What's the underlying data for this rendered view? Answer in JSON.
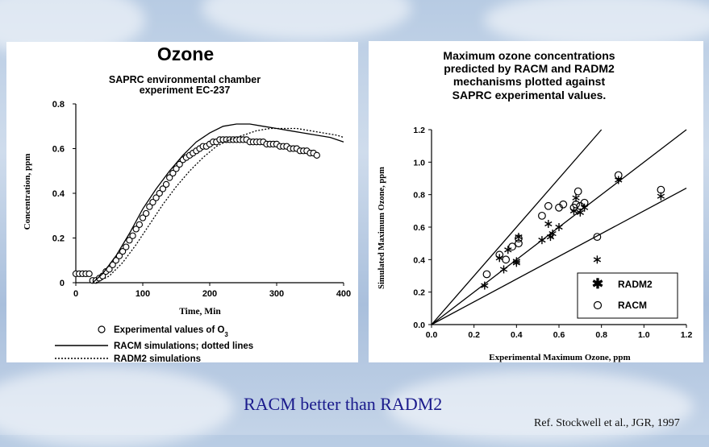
{
  "left_chart": {
    "heading": "Ozone",
    "subtitle_line1": "SAPRC environmental chamber",
    "subtitle_line2": "experiment EC-237",
    "legend": {
      "experimental": "Experimental values of O",
      "experimental_sub": "3",
      "racm": "RACM simulations; dotted lines",
      "radm2": "RADM2 simulations"
    }
  },
  "right_chart": {
    "title_line1": "Maximum ozone concentrations",
    "title_line2": "predicted by RACM and RADM2",
    "title_line3": "mechanisms plotted against",
    "title_line4": "SAPRC experimental values.",
    "legend": {
      "radm2": "RADM2",
      "racm": "RACM"
    }
  },
  "chart_data": [
    {
      "type": "line",
      "title": "Ozone",
      "xlabel": "Time, Min",
      "ylabel": "Concentration, ppm",
      "xlim": [
        0,
        400
      ],
      "ylim": [
        0,
        0.8
      ],
      "xticks": [
        0,
        100,
        200,
        300,
        400
      ],
      "yticks": [
        0,
        0.2,
        0.4,
        0.6,
        0.8
      ],
      "ytick_labels": [
        "0",
        "0.2",
        "0.4",
        "0.6",
        "0.8"
      ],
      "series": [
        {
          "name": "Experimental values of O3",
          "style": "open-circle",
          "x": [
            0,
            5,
            10,
            15,
            20,
            25,
            30,
            35,
            40,
            45,
            50,
            55,
            60,
            65,
            70,
            75,
            80,
            85,
            90,
            95,
            100,
            105,
            110,
            115,
            120,
            125,
            130,
            135,
            140,
            145,
            150,
            155,
            160,
            165,
            170,
            175,
            180,
            185,
            190,
            195,
            200,
            205,
            210,
            215,
            220,
            225,
            230,
            235,
            240,
            245,
            250,
            255,
            260,
            265,
            270,
            275,
            280,
            285,
            290,
            295,
            300,
            305,
            310,
            315,
            320,
            325,
            330,
            335,
            340,
            345,
            350,
            355,
            360
          ],
          "y": [
            0.04,
            0.04,
            0.04,
            0.04,
            0.04,
            0.01,
            0.01,
            0.02,
            0.03,
            0.05,
            0.06,
            0.08,
            0.1,
            0.12,
            0.14,
            0.16,
            0.19,
            0.21,
            0.24,
            0.26,
            0.29,
            0.31,
            0.34,
            0.36,
            0.38,
            0.4,
            0.42,
            0.44,
            0.47,
            0.49,
            0.51,
            0.53,
            0.55,
            0.56,
            0.57,
            0.58,
            0.59,
            0.6,
            0.61,
            0.61,
            0.62,
            0.63,
            0.63,
            0.64,
            0.64,
            0.64,
            0.64,
            0.64,
            0.64,
            0.64,
            0.64,
            0.64,
            0.63,
            0.63,
            0.63,
            0.63,
            0.63,
            0.62,
            0.62,
            0.62,
            0.62,
            0.61,
            0.61,
            0.61,
            0.6,
            0.6,
            0.6,
            0.59,
            0.59,
            0.59,
            0.58,
            0.58,
            0.57
          ]
        },
        {
          "name": "RACM simulations",
          "style": "solid",
          "x": [
            25,
            40,
            60,
            80,
            100,
            120,
            140,
            160,
            180,
            200,
            220,
            240,
            260,
            280,
            300,
            320,
            340,
            360,
            380,
            400
          ],
          "y": [
            0.0,
            0.04,
            0.12,
            0.22,
            0.33,
            0.42,
            0.5,
            0.57,
            0.63,
            0.67,
            0.7,
            0.71,
            0.71,
            0.7,
            0.69,
            0.68,
            0.67,
            0.66,
            0.65,
            0.63
          ]
        },
        {
          "name": "RADM2 simulations",
          "style": "dotted",
          "x": [
            30,
            50,
            70,
            90,
            110,
            130,
            150,
            170,
            190,
            210,
            230,
            250,
            270,
            290,
            310,
            330,
            350,
            370,
            390,
            400
          ],
          "y": [
            0.0,
            0.03,
            0.09,
            0.17,
            0.26,
            0.35,
            0.43,
            0.5,
            0.56,
            0.61,
            0.64,
            0.66,
            0.68,
            0.69,
            0.69,
            0.69,
            0.68,
            0.67,
            0.66,
            0.65
          ]
        }
      ]
    },
    {
      "type": "scatter",
      "title": "Maximum ozone concentrations predicted by RACM and RADM2 mechanisms plotted against SAPRC experimental values.",
      "xlabel": "Experimental Maximum Ozone, ppm",
      "ylabel": "Simulated Maximum Ozone, ppm",
      "xlim": [
        0,
        1.2
      ],
      "ylim": [
        0,
        1.2
      ],
      "xticks": [
        0,
        0.2,
        0.4,
        0.6,
        0.8,
        1.0,
        1.2
      ],
      "yticks": [
        0,
        0.2,
        0.4,
        0.6,
        0.8,
        1.0,
        1.2
      ],
      "xtick_labels": [
        "0.0",
        "0.2",
        "0.4",
        "0.6",
        "0.8",
        "1.0",
        "1.2"
      ],
      "ytick_labels": [
        "0.0",
        "0.2",
        "0.4",
        "0.6",
        "0.8",
        "1.0",
        "1.2"
      ],
      "reference_lines": [
        {
          "slope": 1.5
        },
        {
          "slope": 1.0
        },
        {
          "slope": 0.7
        }
      ],
      "series": [
        {
          "name": "RADM2",
          "marker": "asterisk",
          "x": [
            0.25,
            0.32,
            0.34,
            0.36,
            0.4,
            0.4,
            0.41,
            0.52,
            0.55,
            0.56,
            0.57,
            0.6,
            0.67,
            0.68,
            0.7,
            0.72,
            0.78,
            0.88,
            1.08
          ],
          "y": [
            0.24,
            0.41,
            0.34,
            0.46,
            0.38,
            0.39,
            0.54,
            0.52,
            0.62,
            0.54,
            0.56,
            0.6,
            0.7,
            0.78,
            0.69,
            0.72,
            0.4,
            0.89,
            0.79
          ]
        },
        {
          "name": "RACM",
          "marker": "open-circle",
          "x": [
            0.26,
            0.32,
            0.35,
            0.38,
            0.41,
            0.41,
            0.52,
            0.55,
            0.6,
            0.62,
            0.67,
            0.68,
            0.69,
            0.7,
            0.72,
            0.78,
            0.88,
            1.08
          ],
          "y": [
            0.31,
            0.43,
            0.4,
            0.48,
            0.5,
            0.53,
            0.67,
            0.73,
            0.72,
            0.74,
            0.72,
            0.74,
            0.82,
            0.73,
            0.75,
            0.54,
            0.92,
            0.83
          ]
        }
      ]
    }
  ],
  "caption": "RACM better than RADM2",
  "reference": "Ref. Stockwell et al., JGR, 1997"
}
